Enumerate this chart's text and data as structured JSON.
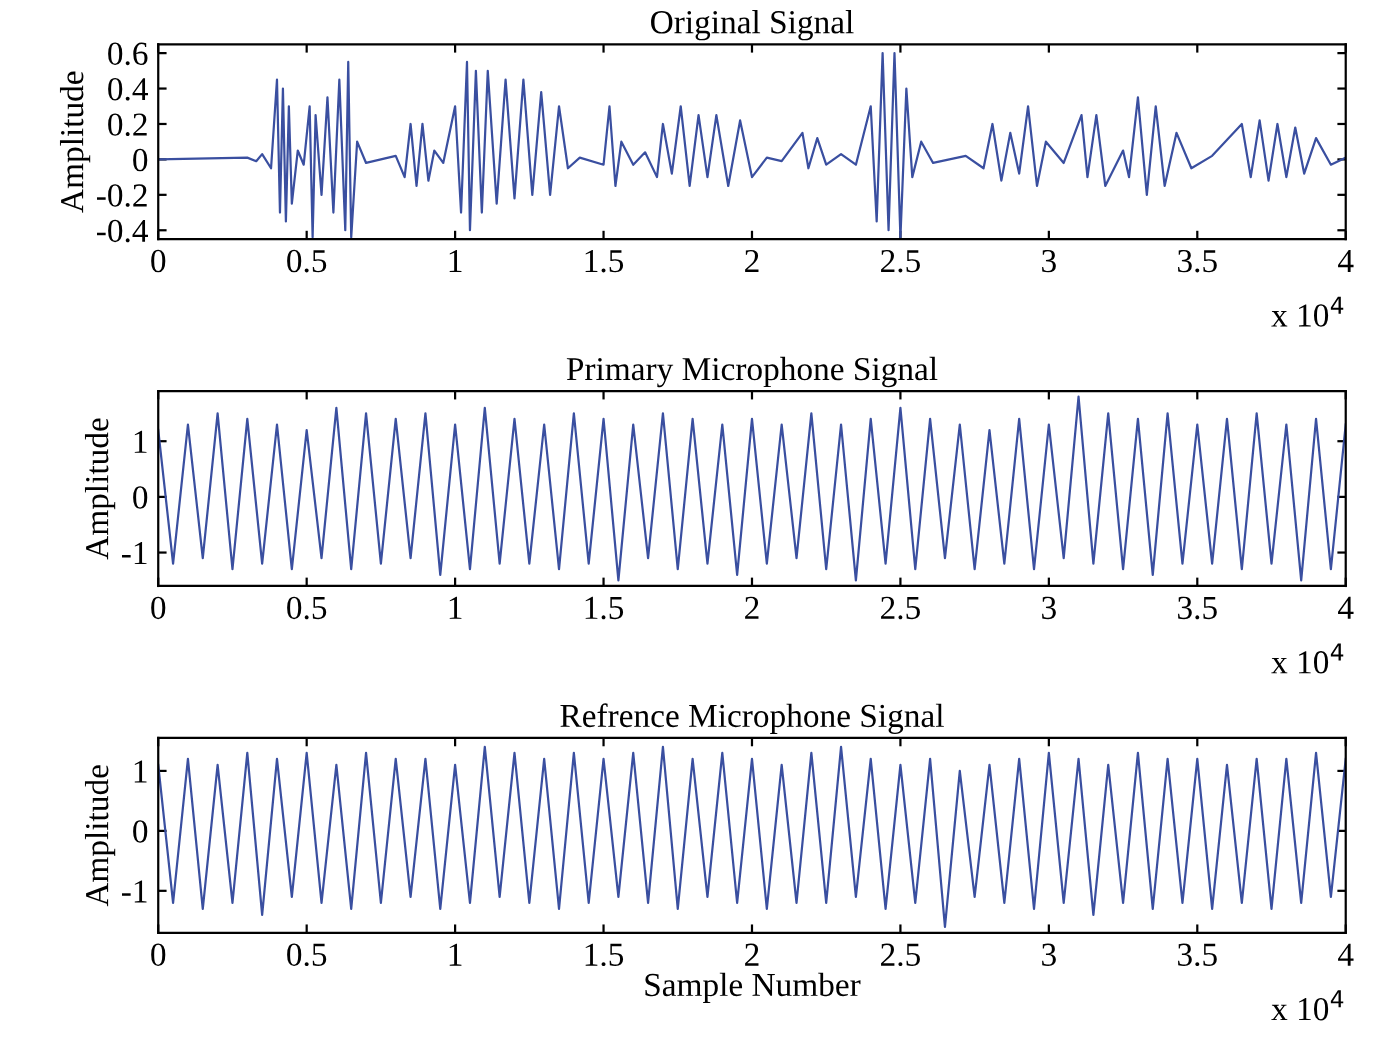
{
  "chart_data": [
    {
      "type": "line",
      "title": "Original Signal",
      "ylabel": "Amplitude",
      "xlim": [
        0,
        4
      ],
      "xticks": [
        0,
        0.5,
        1,
        1.5,
        2,
        2.5,
        3,
        3.5,
        4
      ],
      "ylim": [
        -0.45,
        0.65
      ],
      "yticks": [
        -0.4,
        -0.2,
        0,
        0.2,
        0.4,
        0.6
      ],
      "grid": false,
      "annotations": [
        "x 10$^{4}$"
      ],
      "series": [
        {
          "color": "#3a4fa0",
          "x": [
            0,
            0.3,
            0.33,
            0.35,
            0.38,
            0.4,
            0.41,
            0.42,
            0.43,
            0.44,
            0.45,
            0.47,
            0.49,
            0.51,
            0.52,
            0.53,
            0.55,
            0.57,
            0.59,
            0.61,
            0.63,
            0.64,
            0.65,
            0.67,
            0.7,
            0.8,
            0.83,
            0.85,
            0.87,
            0.89,
            0.91,
            0.93,
            0.96,
            1.0,
            1.02,
            1.04,
            1.05,
            1.07,
            1.09,
            1.11,
            1.14,
            1.17,
            1.2,
            1.23,
            1.26,
            1.29,
            1.32,
            1.35,
            1.38,
            1.42,
            1.5,
            1.52,
            1.54,
            1.56,
            1.6,
            1.64,
            1.68,
            1.7,
            1.73,
            1.76,
            1.79,
            1.82,
            1.85,
            1.88,
            1.92,
            1.96,
            2.0,
            2.05,
            2.1,
            2.17,
            2.19,
            2.22,
            2.25,
            2.3,
            2.35,
            2.4,
            2.42,
            2.44,
            2.46,
            2.48,
            2.5,
            2.52,
            2.54,
            2.57,
            2.61,
            2.72,
            2.78,
            2.81,
            2.84,
            2.87,
            2.9,
            2.93,
            2.96,
            2.99,
            3.05,
            3.11,
            3.13,
            3.16,
            3.19,
            3.25,
            3.27,
            3.3,
            3.33,
            3.36,
            3.39,
            3.43,
            3.48,
            3.55,
            3.65,
            3.68,
            3.71,
            3.74,
            3.77,
            3.8,
            3.83,
            3.86,
            3.9,
            3.95,
            4.0
          ],
          "values": [
            0,
            0.01,
            -0.01,
            0.03,
            -0.05,
            0.45,
            -0.3,
            0.4,
            -0.35,
            0.3,
            -0.25,
            0.05,
            -0.03,
            0.3,
            -0.44,
            0.25,
            -0.2,
            0.35,
            -0.3,
            0.45,
            -0.4,
            0.55,
            -0.44,
            0.1,
            -0.02,
            0.02,
            -0.1,
            0.2,
            -0.15,
            0.2,
            -0.12,
            0.05,
            -0.02,
            0.3,
            -0.3,
            0.55,
            -0.4,
            0.5,
            -0.3,
            0.5,
            -0.25,
            0.45,
            -0.22,
            0.45,
            -0.2,
            0.38,
            -0.2,
            0.3,
            -0.05,
            0.01,
            -0.03,
            0.3,
            -0.15,
            0.1,
            -0.03,
            0.04,
            -0.1,
            0.2,
            -0.08,
            0.3,
            -0.15,
            0.25,
            -0.1,
            0.25,
            -0.15,
            0.22,
            -0.1,
            0.01,
            -0.01,
            0.15,
            -0.05,
            0.12,
            -0.03,
            0.03,
            -0.03,
            0.3,
            -0.35,
            0.6,
            -0.4,
            0.6,
            -0.44,
            0.4,
            -0.1,
            0.1,
            -0.02,
            0.02,
            -0.05,
            0.2,
            -0.12,
            0.15,
            -0.08,
            0.3,
            -0.15,
            0.1,
            -0.02,
            0.25,
            -0.1,
            0.25,
            -0.15,
            0.05,
            -0.1,
            0.35,
            -0.2,
            0.3,
            -0.15,
            0.15,
            -0.05,
            0.02,
            0.2,
            -0.1,
            0.22,
            -0.12,
            0.2,
            -0.1,
            0.18,
            -0.08,
            0.12,
            -0.03,
            0.01
          ]
        }
      ]
    },
    {
      "type": "line",
      "title": "Primary Microphone Signal",
      "ylabel": "Amplitude",
      "xlim": [
        0,
        4
      ],
      "xticks": [
        0,
        0.5,
        1,
        1.5,
        2,
        2.5,
        3,
        3.5,
        4
      ],
      "ylim": [
        -1.6,
        1.9
      ],
      "yticks": [
        -1,
        0,
        1
      ],
      "grid": false,
      "annotations": [
        "x 10$^{4}$"
      ],
      "series": [
        {
          "color": "#3a4fa0",
          "x": [
            0,
            0.05,
            0.1,
            0.15,
            0.2,
            0.25,
            0.3,
            0.35,
            0.4,
            0.45,
            0.5,
            0.55,
            0.6,
            0.65,
            0.7,
            0.75,
            0.8,
            0.85,
            0.9,
            0.95,
            1.0,
            1.05,
            1.1,
            1.15,
            1.2,
            1.25,
            1.3,
            1.35,
            1.4,
            1.45,
            1.5,
            1.55,
            1.6,
            1.65,
            1.7,
            1.75,
            1.8,
            1.85,
            1.9,
            1.95,
            2.0,
            2.05,
            2.1,
            2.15,
            2.2,
            2.25,
            2.3,
            2.35,
            2.4,
            2.45,
            2.5,
            2.55,
            2.6,
            2.65,
            2.7,
            2.75,
            2.8,
            2.85,
            2.9,
            2.95,
            3.0,
            3.05,
            3.1,
            3.15,
            3.2,
            3.25,
            3.3,
            3.35,
            3.4,
            3.45,
            3.5,
            3.55,
            3.6,
            3.65,
            3.7,
            3.75,
            3.8,
            3.85,
            3.9,
            3.95,
            4.0
          ],
          "values": [
            1.2,
            -1.2,
            1.3,
            -1.1,
            1.5,
            -1.3,
            1.4,
            -1.2,
            1.3,
            -1.3,
            1.2,
            -1.1,
            1.6,
            -1.3,
            1.5,
            -1.2,
            1.4,
            -1.1,
            1.5,
            -1.4,
            1.3,
            -1.3,
            1.6,
            -1.2,
            1.4,
            -1.2,
            1.3,
            -1.3,
            1.5,
            -1.2,
            1.4,
            -1.5,
            1.3,
            -1.1,
            1.5,
            -1.3,
            1.4,
            -1.2,
            1.3,
            -1.4,
            1.4,
            -1.2,
            1.3,
            -1.1,
            1.5,
            -1.3,
            1.3,
            -1.5,
            1.4,
            -1.2,
            1.6,
            -1.3,
            1.4,
            -1.1,
            1.3,
            -1.3,
            1.2,
            -1.2,
            1.4,
            -1.3,
            1.3,
            -1.1,
            1.8,
            -1.2,
            1.5,
            -1.3,
            1.4,
            -1.4,
            1.5,
            -1.2,
            1.3,
            -1.2,
            1.4,
            -1.3,
            1.5,
            -1.2,
            1.3,
            -1.5,
            1.4,
            -1.3,
            1.3
          ]
        }
      ]
    },
    {
      "type": "line",
      "title": "Refrence Microphone Signal",
      "xlabel": "Sample Number",
      "ylabel": "Amplitude",
      "xlim": [
        0,
        4
      ],
      "xticks": [
        0,
        0.5,
        1,
        1.5,
        2,
        2.5,
        3,
        3.5,
        4
      ],
      "ylim": [
        -1.7,
        1.55
      ],
      "yticks": [
        -1,
        0,
        1
      ],
      "grid": false,
      "annotations": [
        "x 10$^{4}$"
      ],
      "series": [
        {
          "color": "#3a4fa0",
          "x": [
            0,
            0.05,
            0.1,
            0.15,
            0.2,
            0.25,
            0.3,
            0.35,
            0.4,
            0.45,
            0.5,
            0.55,
            0.6,
            0.65,
            0.7,
            0.75,
            0.8,
            0.85,
            0.9,
            0.95,
            1.0,
            1.05,
            1.1,
            1.15,
            1.2,
            1.25,
            1.3,
            1.35,
            1.4,
            1.45,
            1.5,
            1.55,
            1.6,
            1.65,
            1.7,
            1.75,
            1.8,
            1.85,
            1.9,
            1.95,
            2.0,
            2.05,
            2.1,
            2.15,
            2.2,
            2.25,
            2.3,
            2.35,
            2.4,
            2.45,
            2.5,
            2.55,
            2.6,
            2.65,
            2.7,
            2.75,
            2.8,
            2.85,
            2.9,
            2.95,
            3.0,
            3.05,
            3.1,
            3.15,
            3.2,
            3.25,
            3.3,
            3.35,
            3.4,
            3.45,
            3.5,
            3.55,
            3.6,
            3.65,
            3.7,
            3.75,
            3.8,
            3.85,
            3.9,
            3.95,
            4.0
          ],
          "values": [
            1.1,
            -1.2,
            1.2,
            -1.3,
            1.1,
            -1.2,
            1.3,
            -1.4,
            1.2,
            -1.1,
            1.3,
            -1.2,
            1.1,
            -1.3,
            1.3,
            -1.2,
            1.2,
            -1.1,
            1.2,
            -1.3,
            1.1,
            -1.2,
            1.4,
            -1.1,
            1.3,
            -1.2,
            1.2,
            -1.3,
            1.3,
            -1.2,
            1.2,
            -1.1,
            1.3,
            -1.2,
            1.4,
            -1.3,
            1.2,
            -1.1,
            1.3,
            -1.2,
            1.2,
            -1.3,
            1.1,
            -1.2,
            1.3,
            -1.2,
            1.4,
            -1.1,
            1.2,
            -1.3,
            1.1,
            -1.2,
            1.2,
            -1.6,
            1.0,
            -1.1,
            1.1,
            -1.2,
            1.2,
            -1.3,
            1.3,
            -1.2,
            1.2,
            -1.4,
            1.1,
            -1.2,
            1.3,
            -1.3,
            1.2,
            -1.2,
            1.2,
            -1.3,
            1.1,
            -1.2,
            1.2,
            -1.3,
            1.2,
            -1.2,
            1.3,
            -1.1,
            1.2
          ]
        }
      ]
    }
  ]
}
